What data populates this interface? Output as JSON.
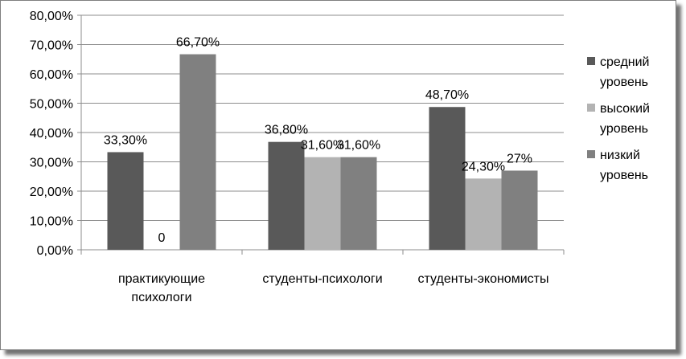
{
  "chart_data": {
    "type": "bar",
    "categories": [
      [
        "практикующие",
        "психологи"
      ],
      [
        "студенты-психологи"
      ],
      [
        "студенты-экономисты"
      ]
    ],
    "series": [
      {
        "name": [
          "средний",
          "уровень"
        ],
        "values": [
          33.3,
          36.8,
          48.7
        ],
        "labels": [
          "33,30%",
          "36,80%",
          "48,70%"
        ],
        "color": "#595959"
      },
      {
        "name": [
          "высокий",
          "уровень"
        ],
        "values": [
          0,
          31.6,
          24.3
        ],
        "labels": [
          "0",
          "31,60%",
          "24,30%"
        ],
        "color": "#b3b3b3"
      },
      {
        "name": [
          "низкий",
          "уровень"
        ],
        "values": [
          66.7,
          31.6,
          27
        ],
        "labels": [
          "66,70%",
          "31,60%",
          "27%"
        ],
        "color": "#808080"
      }
    ],
    "ylim": [
      0,
      80
    ],
    "yticks": [
      "0,00%",
      "10,00%",
      "20,00%",
      "30,00%",
      "40,00%",
      "50,00%",
      "60,00%",
      "70,00%",
      "80,00%"
    ],
    "grid": true,
    "legend": "right"
  }
}
